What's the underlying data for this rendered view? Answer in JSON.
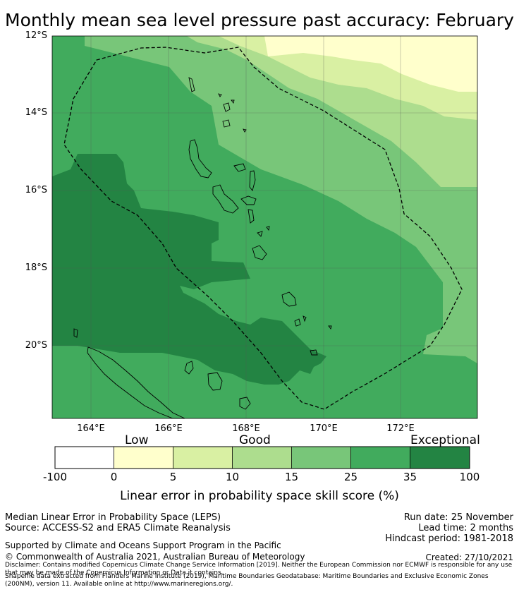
{
  "title": "Monthly mean sea level pressure past accuracy: February",
  "map": {
    "lat_labels": [
      "12°S",
      "14°S",
      "16°S",
      "18°S",
      "20°S"
    ],
    "lon_labels": [
      "164°E",
      "166°E",
      "168°E",
      "170°E",
      "172°E"
    ],
    "lon_range": [
      163.0,
      174.0
    ],
    "lat_range": [
      -22.0,
      -12.0
    ],
    "colors": {
      "c0": "#ffffff",
      "c1": "#ffffcc",
      "c2": "#d9f0a3",
      "c3": "#addd8e",
      "c4": "#78c679",
      "c5": "#41ab5d",
      "c6": "#238443"
    }
  },
  "colorbar": {
    "categories": [
      "Low",
      "Good",
      "Exceptional"
    ],
    "ticks": [
      "-100",
      "0",
      "5",
      "10",
      "15",
      "25",
      "35",
      "100"
    ],
    "label": "Linear error in probability space skill score (%)"
  },
  "footer": {
    "line1": "Median Linear Error in Probability Space (LEPS)",
    "line2": "Source: ACCESS-S2 and ERA5 Climate Reanalysis",
    "run_date": "Run date: 25 November",
    "lead_time": "Lead time: 2 months",
    "hindcast": "Hindcast period: 1981-2018",
    "supported": "Supported by Climate and Oceans Support Program in the Pacific",
    "copyright": "© Commonwealth of Australia 2021, Australian Bureau of Meteorology",
    "created": "Created: 27/10/2021",
    "disclaimer": "Disclaimer: Contains modified Copernicus Climate Change Service Information [2019]. Neither the European Commission nor ECMWF is responsible for any use that may be made of the Copernicus Information or Data it contains.",
    "shapefile": "Shapefile data extracted from Flanders Marine Institute (2019), Maritime Boundaries Geodatabase: Maritime Boundaries and Exclusive Economic Zones (200NM), version 11. Available online at http://www.marineregions.org/."
  }
}
